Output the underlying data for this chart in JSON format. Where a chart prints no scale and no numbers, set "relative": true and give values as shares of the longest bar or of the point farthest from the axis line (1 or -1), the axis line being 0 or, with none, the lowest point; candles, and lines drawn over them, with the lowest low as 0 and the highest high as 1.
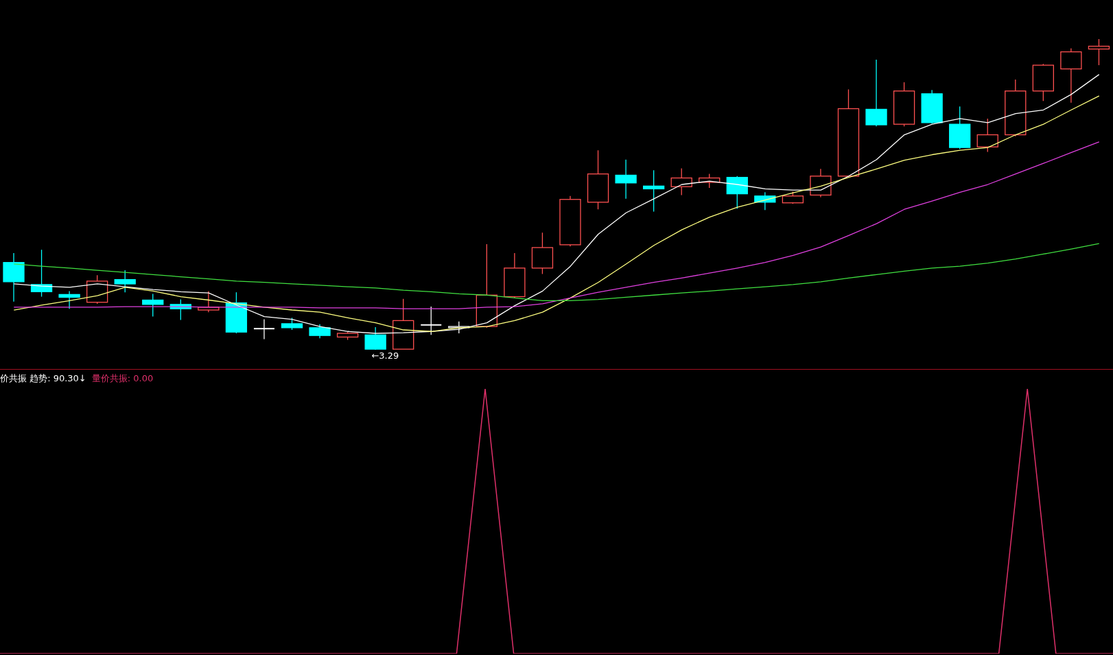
{
  "chart_data": [
    {
      "type": "candlestick",
      "relative": true,
      "categories": [
        null,
        null,
        null,
        null,
        null,
        null,
        null,
        null,
        null,
        null,
        null,
        null,
        null,
        null,
        null,
        null,
        null,
        null,
        null,
        null,
        null,
        null,
        null,
        null,
        null,
        null,
        null,
        null,
        null,
        null,
        null,
        null,
        null,
        null,
        null,
        null,
        null,
        null,
        null,
        null
      ],
      "ohlc": [
        [
          0.281,
          0.311,
          0.155,
          0.219
        ],
        [
          0.21,
          0.322,
          0.171,
          0.187
        ],
        [
          0.178,
          0.189,
          0.132,
          0.169
        ],
        [
          0.153,
          0.24,
          0.148,
          0.221
        ],
        [
          0.226,
          0.256,
          0.185,
          0.212
        ],
        [
          0.16,
          0.18,
          0.107,
          0.146
        ],
        [
          0.146,
          0.162,
          0.096,
          0.132
        ],
        [
          0.128,
          0.189,
          0.121,
          0.137
        ],
        [
          0.151,
          0.185,
          0.053,
          0.057
        ],
        [
          0.068,
          0.098,
          0.034,
          0.068
        ],
        [
          0.084,
          0.103,
          0.064,
          0.071
        ],
        [
          0.071,
          0.082,
          0.037,
          0.046
        ],
        [
          0.041,
          0.057,
          0.032,
          0.053
        ],
        [
          0.048,
          0.073,
          0,
          0.002
        ],
        [
          0.002,
          0.164,
          0.002,
          0.094
        ],
        [
          0.08,
          0.139,
          0.048,
          0.08
        ],
        [
          0.071,
          0.091,
          0.053,
          0.075
        ],
        [
          0.075,
          0.34,
          0.071,
          0.176
        ],
        [
          0.171,
          0.311,
          0.167,
          0.263
        ],
        [
          0.263,
          0.377,
          0.244,
          0.329
        ],
        [
          0.338,
          0.495,
          0.333,
          0.484
        ],
        [
          0.475,
          0.642,
          0.452,
          0.566
        ],
        [
          0.562,
          0.612,
          0.486,
          0.537
        ],
        [
          0.527,
          0.578,
          0.445,
          0.518
        ],
        [
          0.525,
          0.584,
          0.498,
          0.553
        ],
        [
          0.539,
          0.566,
          0.521,
          0.553
        ],
        [
          0.555,
          0.559,
          0.454,
          0.502
        ],
        [
          0.495,
          0.507,
          0.45,
          0.475
        ],
        [
          0.473,
          0.509,
          0.47,
          0.495
        ],
        [
          0.498,
          0.582,
          0.491,
          0.559
        ],
        [
          0.559,
          0.838,
          0.555,
          0.776
        ],
        [
          0.774,
          0.934,
          0.719,
          0.724
        ],
        [
          0.726,
          0.861,
          0.719,
          0.833
        ],
        [
          0.824,
          0.836,
          0.728,
          0.731
        ],
        [
          0.726,
          0.783,
          0.646,
          0.651
        ],
        [
          0.653,
          0.744,
          0.637,
          0.692
        ],
        [
          0.692,
          0.87,
          0.687,
          0.833
        ],
        [
          0.833,
          0.92,
          0.801,
          0.916
        ],
        [
          0.904,
          0.97,
          0.795,
          0.959
        ],
        [
          0.968,
          1,
          0.916,
          0.977
        ]
      ],
      "colors": [
        "#00ffff",
        "#00ffff",
        "#00ffff",
        "#ff5050",
        "#00ffff",
        "#00ffff",
        "#00ffff",
        "#ff5050",
        "#00ffff",
        "#ffffff",
        "#00ffff",
        "#00ffff",
        "#ff5050",
        "#00ffff",
        "#ff5050",
        "#ffffff",
        "#ffffff",
        "#ff5050",
        "#ff5050",
        "#ff5050",
        "#ff5050",
        "#ff5050",
        "#00ffff",
        "#00ffff",
        "#ff5050",
        "#ff5050",
        "#00ffff",
        "#00ffff",
        "#ff5050",
        "#ff5050",
        "#ff5050",
        "#00ffff",
        "#ff5050",
        "#00ffff",
        "#00ffff",
        "#ff5050",
        "#ff5050",
        "#ff5050",
        "#ff5050",
        "#ff5050"
      ],
      "series": [
        {
          "type": "line",
          "color": "#ffffff",
          "values": [
            0.212,
            0.205,
            0.201,
            0.212,
            0.203,
            0.194,
            0.187,
            0.183,
            0.144,
            0.107,
            0.098,
            0.075,
            0.059,
            0.053,
            0.055,
            0.059,
            0.066,
            0.087,
            0.142,
            0.189,
            0.269,
            0.372,
            0.441,
            0.486,
            0.532,
            0.543,
            0.532,
            0.518,
            0.514,
            0.514,
            0.559,
            0.612,
            0.692,
            0.726,
            0.744,
            0.731,
            0.76,
            0.772,
            0.822,
            0.886
          ]
        },
        {
          "type": "line",
          "color": "#ffff80",
          "values": [
            0.128,
            0.144,
            0.158,
            0.174,
            0.201,
            0.189,
            0.171,
            0.16,
            0.148,
            0.137,
            0.128,
            0.121,
            0.103,
            0.087,
            0.064,
            0.059,
            0.071,
            0.075,
            0.094,
            0.121,
            0.167,
            0.217,
            0.276,
            0.336,
            0.386,
            0.427,
            0.459,
            0.482,
            0.505,
            0.527,
            0.555,
            0.582,
            0.61,
            0.628,
            0.642,
            0.651,
            0.692,
            0.726,
            0.772,
            0.817
          ]
        },
        {
          "type": "line",
          "color": "#e040e0",
          "values": [
            0.137,
            0.137,
            0.137,
            0.137,
            0.139,
            0.139,
            0.139,
            0.137,
            0.137,
            0.137,
            0.137,
            0.135,
            0.135,
            0.135,
            0.132,
            0.132,
            0.132,
            0.137,
            0.139,
            0.148,
            0.167,
            0.185,
            0.201,
            0.217,
            0.231,
            0.247,
            0.263,
            0.281,
            0.304,
            0.331,
            0.368,
            0.406,
            0.452,
            0.479,
            0.507,
            0.532,
            0.566,
            0.6,
            0.635,
            0.669
          ]
        },
        {
          "type": "line",
          "color": "#40e040",
          "values": [
            0.276,
            0.269,
            0.263,
            0.256,
            0.249,
            0.242,
            0.235,
            0.228,
            0.221,
            0.217,
            0.212,
            0.208,
            0.203,
            0.199,
            0.192,
            0.187,
            0.18,
            0.176,
            0.167,
            0.158,
            0.158,
            0.162,
            0.169,
            0.176,
            0.183,
            0.189,
            0.196,
            0.203,
            0.21,
            0.219,
            0.231,
            0.242,
            0.253,
            0.263,
            0.269,
            0.279,
            0.292,
            0.308,
            0.324,
            0.342
          ]
        }
      ],
      "annotations": [
        {
          "text": "←3.29",
          "y": 0
        }
      ]
    },
    {
      "type": "line",
      "relative": true,
      "categories": [
        null,
        null,
        null,
        null,
        null,
        null,
        null,
        null,
        null,
        null,
        null,
        null,
        null,
        null,
        null,
        null,
        null,
        null,
        null,
        null,
        null,
        null,
        null,
        null,
        null,
        null,
        null,
        null,
        null,
        null,
        null,
        null,
        null,
        null,
        null,
        null,
        null,
        null,
        null,
        null
      ],
      "values": [
        0,
        0,
        0,
        0,
        0,
        0,
        0,
        0,
        0,
        0,
        0,
        0,
        0,
        0,
        0,
        0,
        0,
        1,
        0,
        0,
        0,
        0,
        0,
        0,
        0,
        0,
        0,
        0,
        0,
        0,
        0,
        0,
        0,
        0,
        0,
        0,
        1,
        0,
        0,
        0
      ],
      "color": "#e0306a",
      "annotations": [
        "价共振 趋势: 90.30↓",
        "量价共振: 0.00"
      ]
    }
  ]
}
